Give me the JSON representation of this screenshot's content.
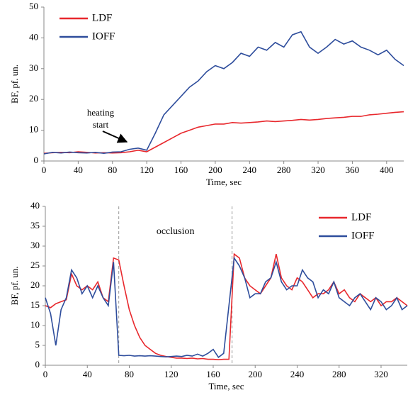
{
  "chart_data": [
    {
      "type": "line",
      "x_label": "Time, sec",
      "y_label": "BF, pf. un.",
      "x": [
        0,
        10,
        20,
        30,
        40,
        50,
        60,
        70,
        80,
        90,
        100,
        110,
        120,
        130,
        140,
        150,
        160,
        170,
        180,
        190,
        200,
        210,
        220,
        230,
        240,
        250,
        260,
        270,
        280,
        290,
        300,
        310,
        320,
        330,
        340,
        350,
        360,
        370,
        380,
        390,
        400,
        410,
        420
      ],
      "series": [
        {
          "name": "LDF",
          "color": "#e8282d",
          "values": [
            2.5,
            2.7,
            2.8,
            2.7,
            3.0,
            2.8,
            2.6,
            2.7,
            2.6,
            2.7,
            3.0,
            3.5,
            3.0,
            4.5,
            6.0,
            7.5,
            9.0,
            10.0,
            11.0,
            11.5,
            12.0,
            12.0,
            12.5,
            12.3,
            12.5,
            12.7,
            13.0,
            12.8,
            13.0,
            13.2,
            13.5,
            13.3,
            13.5,
            13.8,
            14.0,
            14.2,
            14.5,
            14.5,
            15.0,
            15.2,
            15.5,
            15.8,
            16.0
          ]
        },
        {
          "name": "IOFF",
          "color": "#2e4d9c",
          "values": [
            2.3,
            2.8,
            2.6,
            2.9,
            2.7,
            2.6,
            2.8,
            2.5,
            2.9,
            3.0,
            3.8,
            4.2,
            3.5,
            9.0,
            15.0,
            18.0,
            21.0,
            24.0,
            26.0,
            29.0,
            31.0,
            30.0,
            32.0,
            35.0,
            34.0,
            37.0,
            36.0,
            38.5,
            37.0,
            41.0,
            42.0,
            37.0,
            35.0,
            37.0,
            39.5,
            38.0,
            39.0,
            37.0,
            36.0,
            34.5,
            36.0,
            33.0,
            31.0
          ]
        }
      ],
      "xlim": [
        0,
        420
      ],
      "xticks": [
        0,
        40,
        80,
        120,
        160,
        200,
        240,
        280,
        320,
        360,
        400
      ],
      "ylim": [
        0,
        50
      ],
      "yticks": [
        0,
        10,
        20,
        30,
        40,
        50
      ],
      "legend": "upper left",
      "annotation": [
        "heating",
        "start"
      ]
    },
    {
      "type": "line",
      "x_label": "Time, sec",
      "y_label": "BF, pf. un.",
      "x": [
        0,
        5,
        10,
        15,
        20,
        25,
        30,
        35,
        40,
        45,
        50,
        55,
        60,
        65,
        70,
        75,
        80,
        85,
        90,
        95,
        100,
        105,
        110,
        115,
        120,
        125,
        130,
        135,
        140,
        145,
        150,
        155,
        160,
        165,
        170,
        175,
        180,
        185,
        190,
        195,
        200,
        205,
        210,
        215,
        220,
        225,
        230,
        235,
        240,
        245,
        250,
        255,
        260,
        265,
        270,
        275,
        280,
        285,
        290,
        295,
        300,
        305,
        310,
        315,
        320,
        325,
        330,
        335,
        340,
        345
      ],
      "series": [
        {
          "name": "LDF",
          "color": "#e8282d",
          "values": [
            15,
            14.5,
            15.5,
            16,
            16.5,
            23,
            20,
            19,
            20,
            19,
            21,
            17,
            16,
            27,
            26.5,
            20,
            14,
            10,
            7,
            5,
            4,
            3,
            2.5,
            2.2,
            2,
            1.8,
            1.8,
            1.7,
            1.8,
            1.6,
            1.7,
            1.5,
            1.5,
            1.4,
            1.5,
            1.5,
            28,
            27,
            22,
            20,
            19,
            18,
            20,
            22,
            28,
            22,
            20,
            19,
            22,
            21,
            19,
            17,
            18,
            18,
            19,
            21,
            18,
            19,
            17,
            16,
            18,
            17,
            16,
            17,
            15,
            16,
            16,
            17,
            16,
            15
          ]
        },
        {
          "name": "IOFF",
          "color": "#2e4d9c",
          "values": [
            17,
            13,
            5,
            14,
            17,
            24,
            22,
            18,
            20,
            17,
            20,
            17,
            15,
            26,
            2.5,
            2.4,
            2.5,
            2.3,
            2.4,
            2.3,
            2.4,
            2.3,
            2.2,
            2.1,
            2.2,
            2.3,
            2.2,
            2.5,
            2.3,
            2.8,
            2.3,
            3,
            4,
            2,
            3,
            15,
            27,
            25,
            22,
            17,
            18,
            18,
            21,
            22,
            26,
            21,
            19,
            20,
            20,
            24,
            22,
            21,
            17,
            19,
            18,
            21,
            17,
            16,
            15,
            17,
            18,
            16,
            14,
            17,
            16,
            14,
            15,
            17,
            14,
            15
          ]
        }
      ],
      "xlim": [
        0,
        345
      ],
      "xticks": [
        0,
        40,
        80,
        120,
        160,
        200,
        240,
        280,
        320
      ],
      "ylim": [
        0,
        40
      ],
      "yticks": [
        0,
        5,
        10,
        15,
        20,
        25,
        30,
        35,
        40
      ],
      "legend": "upper right",
      "annotation": [
        "occlusion"
      ],
      "vlines": [
        70,
        178
      ]
    }
  ]
}
